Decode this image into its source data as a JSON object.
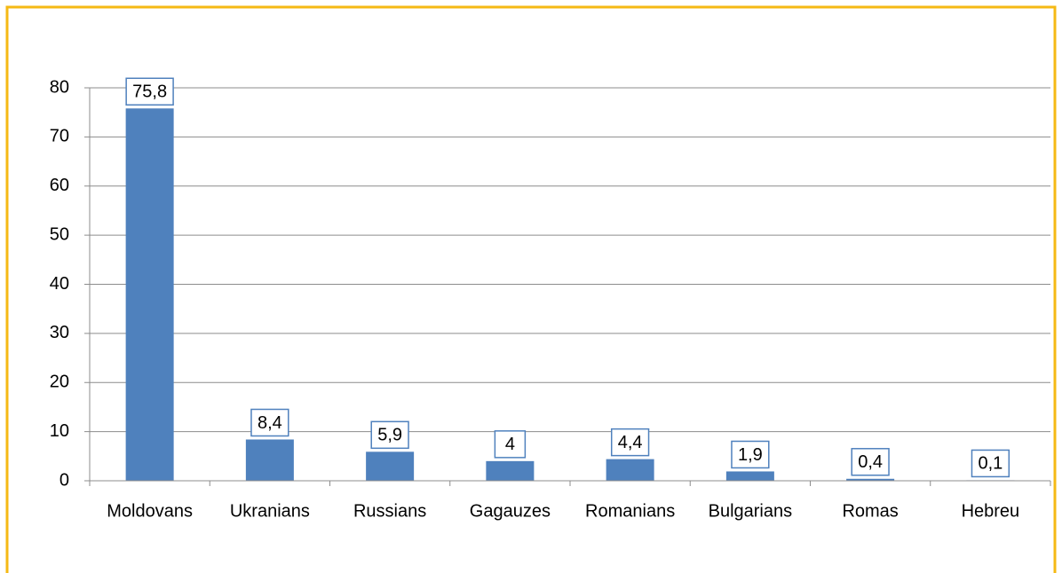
{
  "chart_data": {
    "type": "bar",
    "categories": [
      "Moldovans",
      "Ukranians",
      "Russians",
      "Gagauzes",
      "Romanians",
      "Bulgarians",
      "Romas",
      "Hebreu"
    ],
    "values": [
      75.8,
      8.4,
      5.9,
      4,
      4.4,
      1.9,
      0.4,
      0.1
    ],
    "value_labels": [
      "75,8",
      "8,4",
      "5,9",
      "4",
      "4,4",
      "1,9",
      "0,4",
      "0,1"
    ],
    "color": "#4f81bd",
    "ylim": [
      0,
      80
    ],
    "yticks": [
      0,
      10,
      20,
      30,
      40,
      50,
      60,
      70,
      80
    ],
    "grid": true
  }
}
